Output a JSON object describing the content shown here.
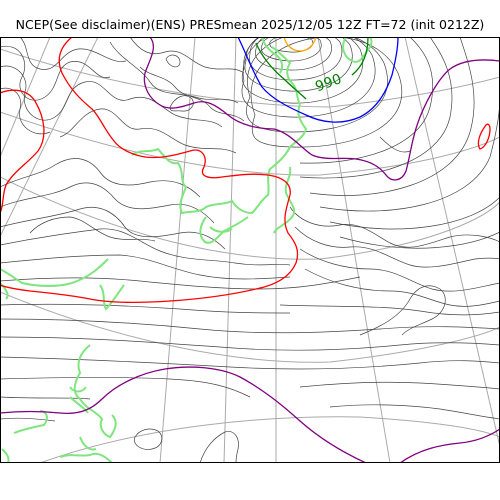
{
  "title": "NCEP(See disclaimer)(ENS) PRESmean 2025/12/05 12Z FT=72 (init 0212Z)",
  "model": "NCEP ENS",
  "field": "PRESmean",
  "valid_time": "2025/12/05 12Z",
  "forecast_hour": "FT=72",
  "init_time": "0212Z",
  "contour_labels": [
    {
      "text": "990",
      "color": "#008000"
    }
  ],
  "colors": {
    "isobar_thin": "#444444",
    "isobar_purple": "#800080",
    "isobar_red": "#ff0000",
    "isobar_blue": "#0000ff",
    "isobar_green": "#008000",
    "isobar_orange": "#ffa500",
    "coastline": "#7fe57f",
    "graticule": "#aaaaaa",
    "frame": "#000000"
  }
}
